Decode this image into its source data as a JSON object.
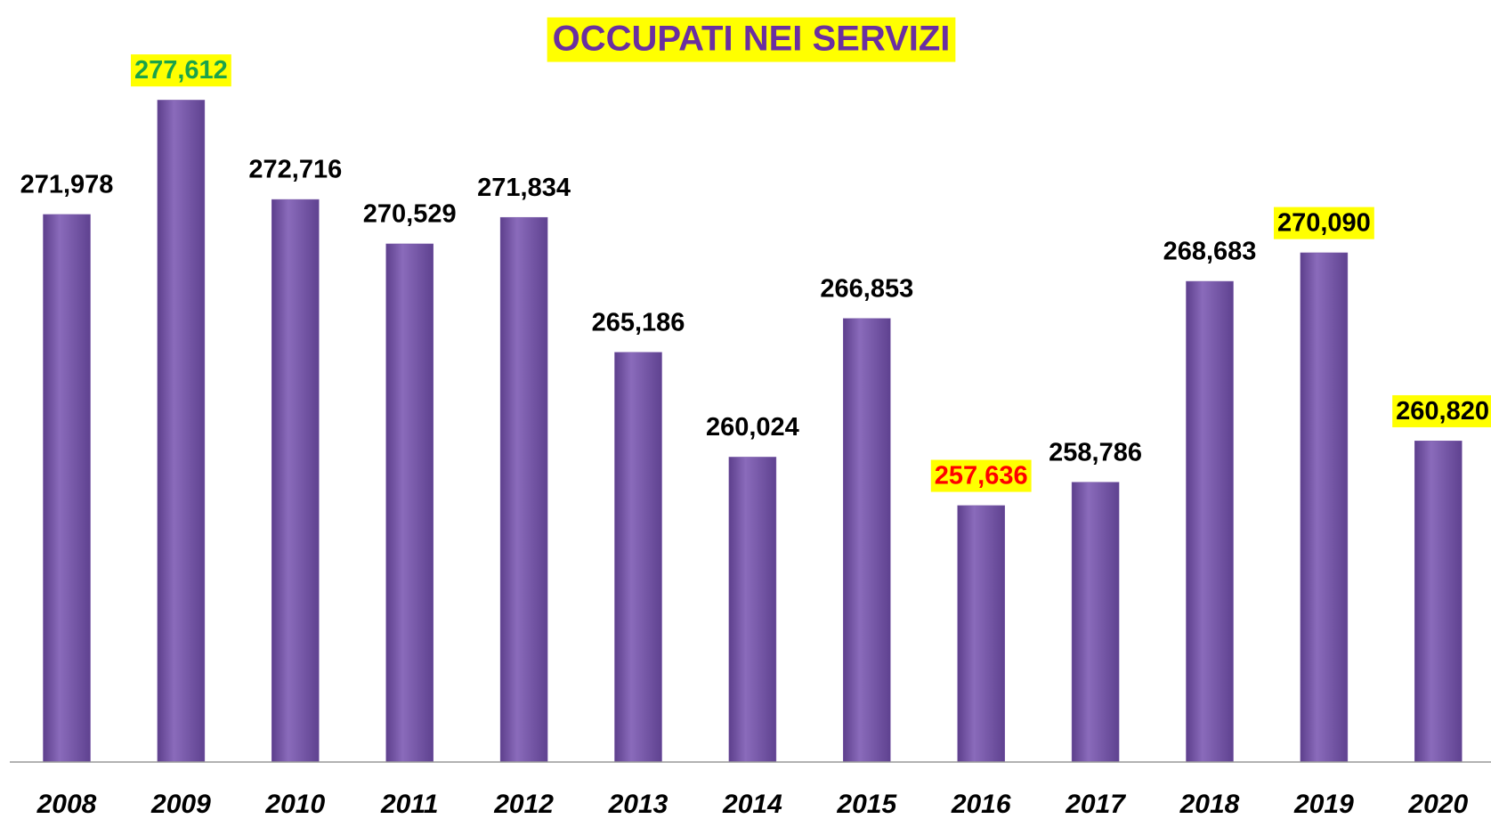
{
  "chart_data": {
    "type": "bar",
    "title": "OCCUPATI NEI SERVIZI",
    "categories": [
      "2008",
      "2009",
      "2010",
      "2011",
      "2012",
      "2013",
      "2014",
      "2015",
      "2016",
      "2017",
      "2018",
      "2019",
      "2020"
    ],
    "values": [
      271978,
      277612,
      272716,
      270529,
      271834,
      265186,
      260024,
      266853,
      257636,
      258786,
      268683,
      270090,
      260820
    ],
    "value_labels": [
      "271,978",
      "277,612",
      "272,716",
      "270,529",
      "271,834",
      "265,186",
      "260,024",
      "266,853",
      "257,636",
      "258,786",
      "268,683",
      "270,090",
      "260,820"
    ],
    "label_colors": [
      "#000000",
      "#1aa34a",
      "#000000",
      "#000000",
      "#000000",
      "#000000",
      "#000000",
      "#000000",
      "#ff0000",
      "#000000",
      "#000000",
      "#000000",
      "#000000"
    ],
    "label_highlight": [
      false,
      true,
      false,
      false,
      false,
      false,
      false,
      false,
      true,
      false,
      false,
      true,
      true
    ],
    "color": "#7a5aa8",
    "ylim": [
      245000,
      280000
    ]
  }
}
